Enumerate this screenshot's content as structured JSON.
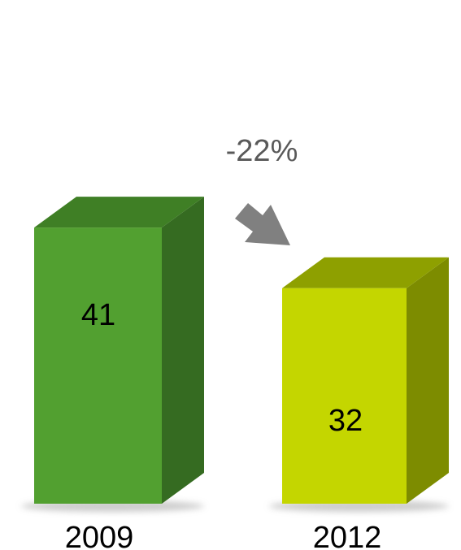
{
  "chart_data": {
    "type": "bar",
    "style": "3d-column",
    "categories": [
      "2009",
      "2012"
    ],
    "values": [
      41,
      32
    ],
    "data_labels": [
      "41",
      "32"
    ],
    "change_annotation": "-22%",
    "title": "",
    "xlabel": "",
    "ylabel": "",
    "grid": false,
    "legend": "none",
    "colors": {
      "bars": [
        {
          "front": "#52A030",
          "top": "#3F7F25",
          "side": "#356B21"
        },
        {
          "front": "#C4D600",
          "top": "#8EA000",
          "side": "#7D8C00"
        }
      ],
      "arrow": "#808080",
      "annotation_text": "#595959",
      "label_text": "#000000"
    }
  }
}
